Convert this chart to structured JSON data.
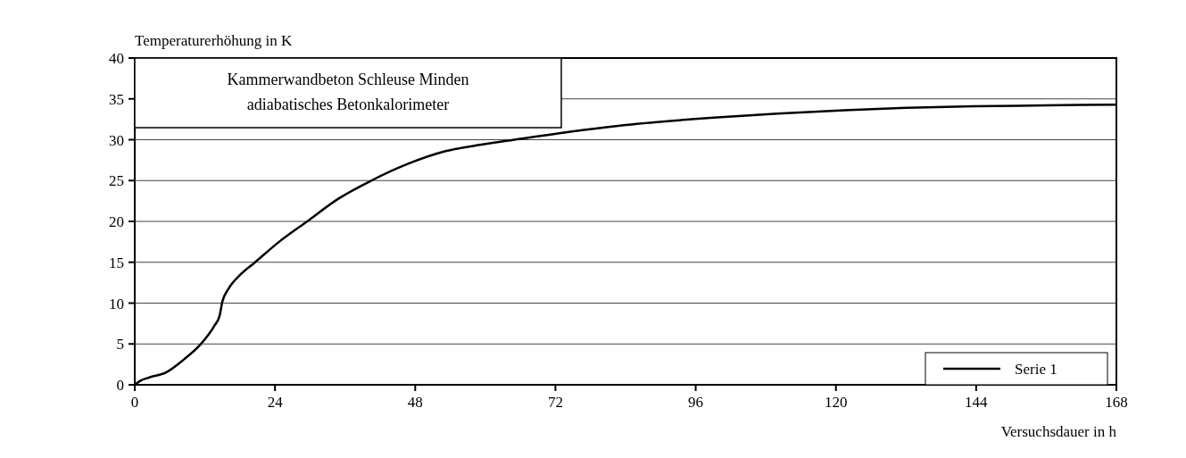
{
  "chart_data": {
    "type": "line",
    "title": "Kammerwandbeton Schleuse Minden",
    "subtitle": "adiabatisches Betonkalorimeter",
    "xlabel": "Versuchsdauer in h",
    "ylabel": "Temperaturerhöhung in K",
    "xlim": [
      0,
      168
    ],
    "xticks": [
      0,
      24,
      48,
      72,
      96,
      120,
      144,
      168
    ],
    "ylim": [
      0,
      40
    ],
    "yticks": [
      0,
      5,
      10,
      15,
      20,
      25,
      30,
      35,
      40
    ],
    "grid": "y",
    "legend": "bottom right",
    "line_style": "solid",
    "marker": "none",
    "series": [
      {
        "name": "Serie 1",
        "color": "#000000",
        "x": [
          0,
          1,
          2.5,
          5.3,
          8.4,
          11.2,
          13.7,
          14.5,
          15,
          16,
          18.1,
          20.6,
          24.7,
          29.3,
          34.9,
          40.5,
          46.6,
          53.2,
          59.3,
          65,
          76.9,
          84,
          99.1,
          110,
          121.4,
          132,
          143.6,
          156,
          168
        ],
        "values": [
          0,
          0.5,
          0.9,
          1.5,
          3.1,
          4.9,
          7.3,
          8.4,
          10.2,
          11.7,
          13.5,
          15,
          17.5,
          19.9,
          22.8,
          25,
          27,
          28.6,
          29.4,
          30,
          31.2,
          31.8,
          32.7,
          33.2,
          33.6,
          33.9,
          34.1,
          34.2,
          34.3
        ]
      }
    ]
  }
}
